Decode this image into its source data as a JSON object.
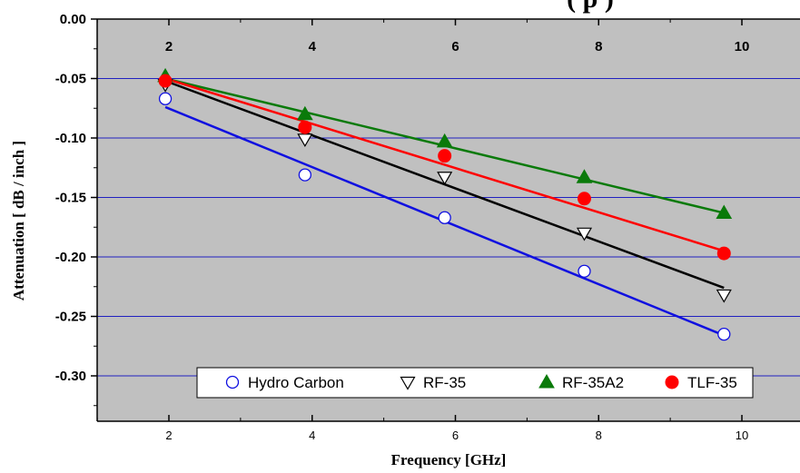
{
  "chart_data": {
    "type": "scatter",
    "title": "(        p        )",
    "xlabel": "Frequency [GHz]",
    "ylabel": "Attenuation [ dB / inch ]",
    "xlim": [
      1.0,
      11.0
    ],
    "ylim": [
      -0.34,
      0.0
    ],
    "x_ticks": [
      2,
      4,
      6,
      8,
      10
    ],
    "x_tick_labels": [
      "2",
      "4",
      "6",
      "8",
      "10"
    ],
    "y_ticks": [
      0.0,
      -0.05,
      -0.1,
      -0.15,
      -0.2,
      -0.25,
      -0.3
    ],
    "y_tick_labels": [
      "0.00",
      "-0.05",
      "-0.10",
      "-0.15",
      "-0.20",
      "-0.25",
      "-0.30"
    ],
    "grid": "horizontal",
    "background_color": "#c0c0c0",
    "grid_color": "#2020c0",
    "legend_position": "bottom-center",
    "series": [
      {
        "name": "Hydro Carbon",
        "marker": "open-circle",
        "color": "#1010e0",
        "x": [
          1.95,
          3.9,
          5.85,
          7.8,
          9.75
        ],
        "y": [
          -0.067,
          -0.131,
          -0.167,
          -0.212,
          -0.265
        ],
        "fit": [
          -0.074,
          -0.266
        ]
      },
      {
        "name": "RF-35",
        "marker": "open-triangle-down",
        "color": "#000000",
        "x": [
          1.95,
          3.9,
          5.85,
          7.8,
          9.75
        ],
        "y": [
          -0.055,
          -0.101,
          -0.133,
          -0.18,
          -0.232
        ],
        "fit": [
          -0.052,
          -0.226
        ]
      },
      {
        "name": "RF-35A2",
        "marker": "filled-triangle-up",
        "color": "#0a7a0a",
        "x": [
          1.95,
          3.9,
          5.85,
          7.8,
          9.75
        ],
        "y": [
          -0.048,
          -0.08,
          -0.103,
          -0.133,
          -0.163
        ],
        "fit": [
          -0.05,
          -0.163
        ]
      },
      {
        "name": "TLF-35",
        "marker": "filled-circle",
        "color": "#ff0000",
        "x": [
          1.95,
          3.9,
          5.85,
          7.8,
          9.75
        ],
        "y": [
          -0.052,
          -0.091,
          -0.115,
          -0.151,
          -0.197
        ],
        "fit": [
          -0.05,
          -0.195
        ]
      }
    ]
  }
}
